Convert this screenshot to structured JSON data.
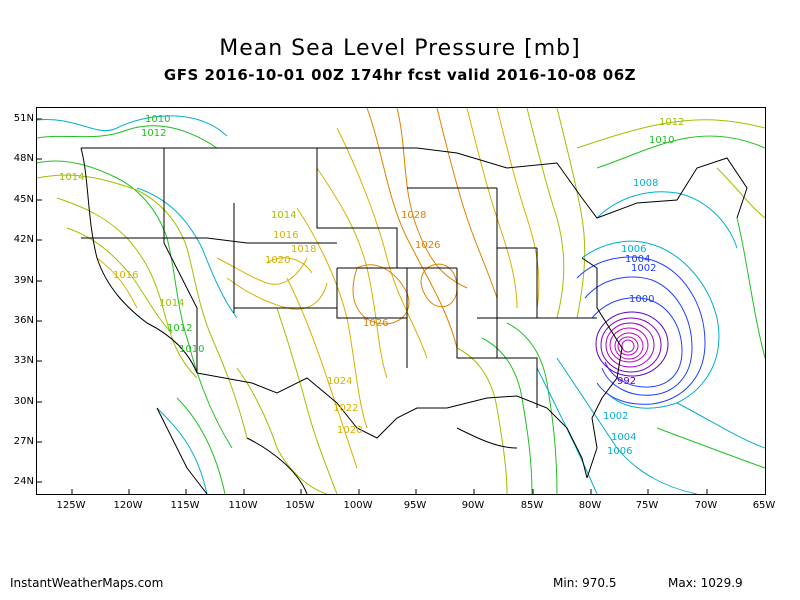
{
  "title": "Mean Sea Level Pressure [mb]",
  "subtitle": "GFS 2016-10-01 00Z 174hr fcst valid 2016-10-08 06Z",
  "lat_ticks": [
    "51N",
    "48N",
    "45N",
    "42N",
    "39N",
    "36N",
    "33N",
    "30N",
    "27N",
    "24N"
  ],
  "lon_ticks": [
    "125W",
    "120W",
    "115W",
    "110W",
    "105W",
    "100W",
    "95W",
    "90W",
    "85W",
    "80W",
    "75W",
    "70W",
    "65W"
  ],
  "contour_labels": [
    "1010",
    "1012",
    "1014",
    "1014",
    "1016",
    "1018",
    "1020",
    "1016",
    "1014",
    "1012",
    "1010",
    "1028",
    "1026",
    "1026",
    "1024",
    "1022",
    "1020",
    "1012",
    "1010",
    "1008",
    "1006",
    "1004",
    "1002",
    "1000",
    "992",
    "1002",
    "1004",
    "1006"
  ],
  "footer": {
    "site": "InstantWeatherMaps.com",
    "min": "Min:  970.5",
    "max": "Max: 1029.9"
  },
  "colors": {
    "low_center": "#c000c0",
    "deep_low": "#6000c0",
    "blue": "#2040ff",
    "cyan": "#00b0d0",
    "green": "#20c020",
    "yellowgreen": "#a0c000",
    "yellow": "#d8b000",
    "orange": "#e08000"
  }
}
